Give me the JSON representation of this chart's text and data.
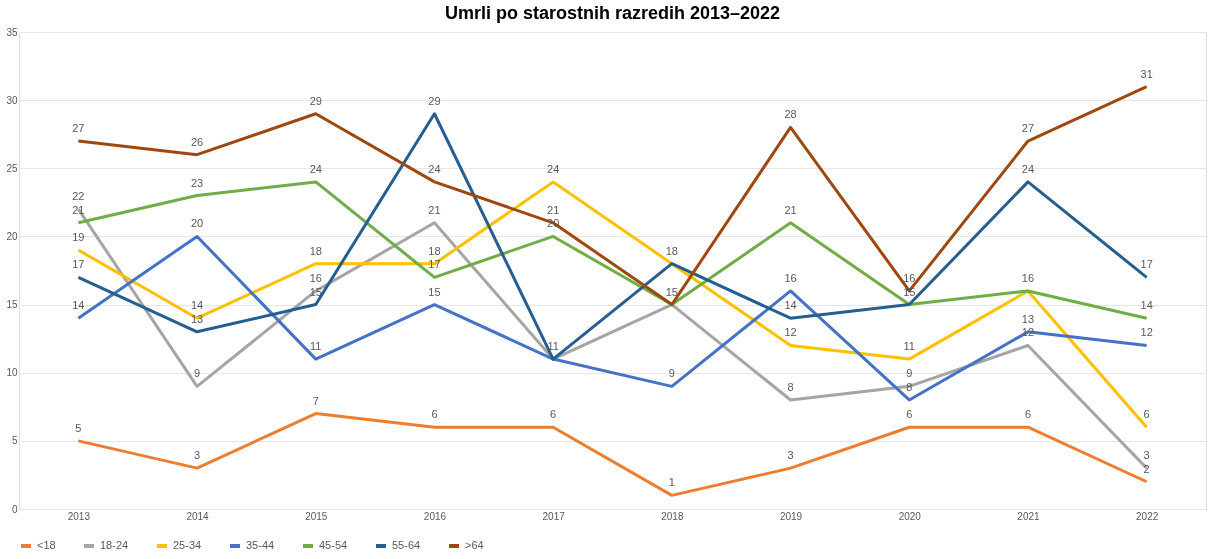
{
  "chart_data": {
    "type": "line",
    "title": "Umrli po starostnih razredih 2013–2022",
    "categories": [
      "2013",
      "2014",
      "2015",
      "2016",
      "2017",
      "2018",
      "2019",
      "2020",
      "2021",
      "2022"
    ],
    "series": [
      {
        "name": "<18",
        "color": "#ed7d31",
        "values": [
          5,
          3,
          7,
          6,
          6,
          1,
          3,
          6,
          6,
          2
        ],
        "value_labels": [
          "5",
          "3",
          "7",
          "6",
          "6",
          "1",
          "3",
          "6",
          "6",
          "2"
        ]
      },
      {
        "name": "18-24",
        "color": "#a5a5a5",
        "values": [
          22,
          9,
          16,
          21,
          11,
          15,
          8,
          9,
          12,
          3
        ],
        "value_labels": [
          "22",
          "9",
          "16",
          "21",
          "11",
          "15",
          "8",
          "9",
          "12",
          "3"
        ]
      },
      {
        "name": "25-34",
        "color": "#ffc000",
        "values": [
          19,
          14,
          18,
          18,
          24,
          18,
          12,
          11,
          16,
          6
        ],
        "value_labels": [
          "19",
          "14",
          "18",
          "18",
          "24",
          null,
          "12",
          "11",
          "16",
          "6"
        ]
      },
      {
        "name": "35-44",
        "color": "#4472c4",
        "values": [
          14,
          20,
          11,
          15,
          11,
          9,
          16,
          8,
          13,
          12
        ],
        "value_labels": [
          "14",
          "20",
          "11",
          "15",
          null,
          "9",
          "16",
          "8",
          "13",
          "12"
        ]
      },
      {
        "name": "45-54",
        "color": "#70ad47",
        "values": [
          21,
          23,
          24,
          17,
          20,
          15,
          21,
          15,
          16,
          14
        ],
        "value_labels": [
          "21",
          "23",
          "24",
          "17",
          "20",
          null,
          "21",
          "15",
          null,
          "14"
        ]
      },
      {
        "name": "55-64",
        "color": "#255e91",
        "values": [
          17,
          13,
          15,
          29,
          11,
          18,
          14,
          15,
          24,
          17
        ],
        "value_labels": [
          "17",
          "13",
          "15",
          "29",
          null,
          "18",
          "14",
          null,
          "24",
          "17"
        ]
      },
      {
        "name": ">64",
        "color": "#9e480e",
        "values": [
          27,
          26,
          29,
          24,
          21,
          15,
          28,
          16,
          27,
          31
        ],
        "value_labels": [
          "27",
          "26",
          "29",
          "24",
          "21",
          null,
          "28",
          "16",
          "27",
          "31"
        ]
      }
    ],
    "ylim": [
      0,
      35
    ],
    "yticks": [
      0,
      5,
      10,
      15,
      20,
      25,
      30,
      35
    ],
    "grid": "y",
    "legend": "bottom",
    "marker": "none",
    "line_style": "solid"
  }
}
